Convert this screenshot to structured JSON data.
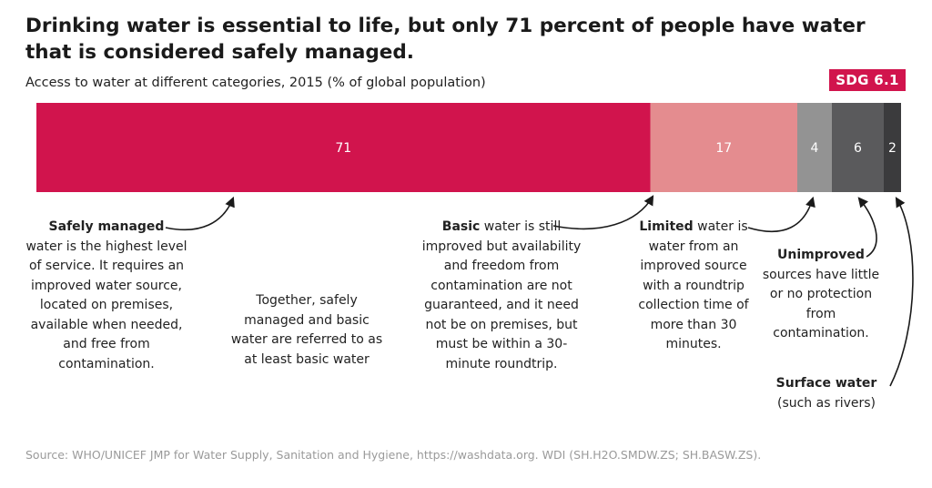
{
  "title": "Drinking water is essential to life, but only 71 percent of people have water that is considered safely managed.",
  "subtitle": "Access to water at different categories, 2015 (% of global population)",
  "badge": "SDG 6.1",
  "chart_data": {
    "type": "bar",
    "orientation": "horizontal-stacked",
    "categories": [
      "Safely managed",
      "Basic",
      "Limited",
      "Unimproved",
      "Surface water"
    ],
    "values": [
      71,
      17,
      4,
      6,
      2
    ],
    "colors": [
      "#d1144d",
      "#e48c8f",
      "#939393",
      "#5a5a5c",
      "#3b3b3d"
    ],
    "label_colors": [
      "#ffffff",
      "#ffffff",
      "#ffffff",
      "#ffffff",
      "#ffffff"
    ],
    "total": 100
  },
  "annotations": {
    "safely": {
      "bold": "Safely managed",
      "rest": "water is the highest level of service. It requires an improved water source, located on premises, available when needed, and free from contamination."
    },
    "together": {
      "text": "Together, safely managed and basic water are referred to as at least basic water"
    },
    "basic": {
      "bold": "Basic",
      "rest": " water is still improved but availability and freedom from contamination are not guaranteed, and it need not be on premises, but must be within a 30-minute roundtrip."
    },
    "limited": {
      "bold": "Limited",
      "rest": " water is water from an improved source with a roundtrip collection time of more than 30 minutes."
    },
    "unimproved": {
      "bold": "Unimproved",
      "rest": "sources have little or no protection from contamination."
    },
    "surface": {
      "bold": "Surface water",
      "rest": "(such as rivers)"
    }
  },
  "source": "Source: WHO/UNICEF JMP for Water Supply, Sanitation and Hygiene, https://washdata.org. WDI (SH.H2O.SMDW.ZS; SH.BASW.ZS)."
}
